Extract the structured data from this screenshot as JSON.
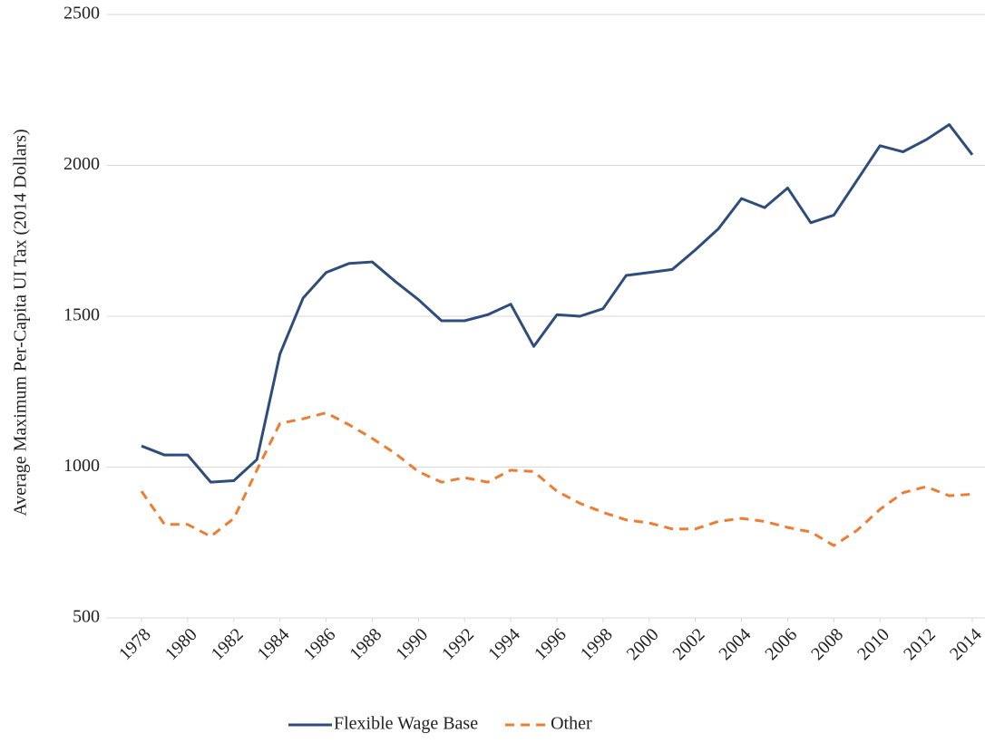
{
  "chart_data": {
    "type": "line",
    "y_label": "Average  Maximum  Per-Capita  UI Tax  (2014 Dollars)",
    "x": [
      1978,
      1979,
      1980,
      1981,
      1982,
      1983,
      1984,
      1985,
      1986,
      1987,
      1988,
      1989,
      1990,
      1991,
      1992,
      1993,
      1994,
      1995,
      1996,
      1997,
      1998,
      1999,
      2000,
      2001,
      2002,
      2003,
      2004,
      2005,
      2006,
      2007,
      2008,
      2009,
      2010,
      2011,
      2012,
      2013,
      2014
    ],
    "xlim": [
      1978,
      2014
    ],
    "xticks": [
      1978,
      1980,
      1982,
      1984,
      1986,
      1988,
      1990,
      1992,
      1994,
      1996,
      1998,
      2000,
      2002,
      2004,
      2006,
      2008,
      2010,
      2012,
      2014
    ],
    "ylim": [
      500,
      2500
    ],
    "yticks": [
      500,
      1000,
      1500,
      2000,
      2500
    ],
    "grid": true,
    "legend": "bottom",
    "series": [
      {
        "name": "Flexible Wage Base",
        "color": "#2e4d7b",
        "dash": "solid",
        "values": [
          1070,
          1040,
          1040,
          950,
          955,
          1025,
          1375,
          1560,
          1645,
          1675,
          1680,
          1615,
          1555,
          1485,
          1485,
          1505,
          1540,
          1400,
          1505,
          1500,
          1525,
          1635,
          1645,
          1655,
          1720,
          1790,
          1890,
          1860,
          1925,
          1810,
          1835,
          1950,
          2065,
          2045,
          2085,
          2135,
          2035
        ]
      },
      {
        "name": "Other",
        "color": "#ed7d31",
        "dash": "dashed",
        "values": [
          920,
          810,
          810,
          770,
          830,
          990,
          1145,
          1160,
          1180,
          1140,
          1095,
          1045,
          985,
          950,
          965,
          950,
          990,
          985,
          920,
          880,
          850,
          825,
          815,
          795,
          795,
          820,
          830,
          820,
          800,
          785,
          740,
          790,
          860,
          915,
          935,
          905,
          910
        ]
      }
    ]
  }
}
